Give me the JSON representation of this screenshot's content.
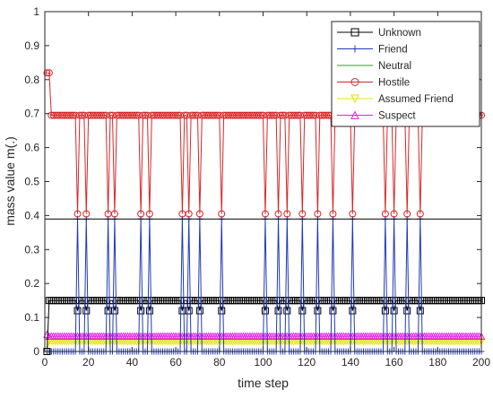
{
  "chart_data": {
    "type": "line",
    "title": "",
    "xlabel": "time step",
    "ylabel": "mass value m(.)",
    "xlim": [
      0,
      200
    ],
    "ylim": [
      0,
      1
    ],
    "x_ticks": [
      0,
      20,
      40,
      60,
      80,
      100,
      120,
      140,
      160,
      180,
      200
    ],
    "y_ticks": [
      0,
      0.1,
      0.2,
      0.3,
      0.4,
      0.5,
      0.6,
      0.7,
      0.8,
      0.9,
      1
    ],
    "grid": false,
    "legend_position": "top-right",
    "x_start": 1,
    "x_end": 200,
    "dip_steps": [
      15,
      19,
      29,
      32,
      44,
      48,
      63,
      66,
      71,
      81,
      101,
      107,
      111,
      118,
      125,
      132,
      141,
      156,
      160,
      166,
      172
    ],
    "series": [
      {
        "name": "Unknown",
        "color": "#000000",
        "marker": "square",
        "initial": 0.0,
        "base": 0.15,
        "dip_value": 0.12
      },
      {
        "name": "Friend",
        "color": "#1f3ab5",
        "marker": "plus",
        "initial": 0.0,
        "base": 0.0,
        "dip_value": 0.39
      },
      {
        "name": "Neutral",
        "color": "#2ca02c",
        "marker": "none",
        "initial": 0.0,
        "base": 0.0,
        "dip_value": 0.0
      },
      {
        "name": "Hostile",
        "color": "#d62728",
        "marker": "circle",
        "initial": 0.82,
        "base": 0.695,
        "dip_value": 0.405
      },
      {
        "name": "Assumed Friend",
        "color": "#e6e600",
        "marker": "triangle-down",
        "initial": 0.0,
        "base": 0.03,
        "dip_value": 0.03
      },
      {
        "name": "Suspect",
        "color": "#e022e0",
        "marker": "triangle-up",
        "initial": 0.05,
        "base": 0.045,
        "dip_value": 0.045
      }
    ],
    "reference_line": {
      "y": 0.39,
      "color": "#000000"
    }
  }
}
